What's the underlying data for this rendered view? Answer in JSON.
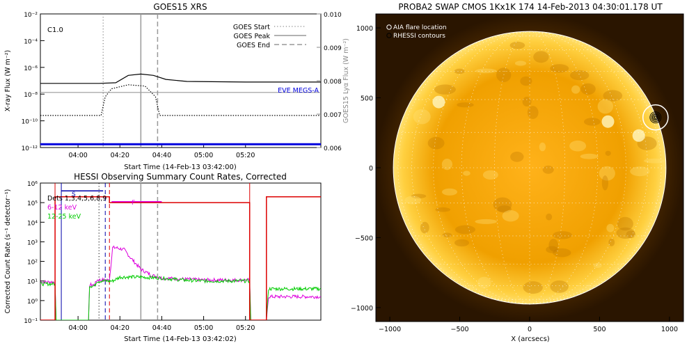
{
  "chart_data": [
    {
      "type": "line",
      "title": "GOES15 XRS",
      "xlabel": "Start Time (14-Feb-13 03:42:00)",
      "ylabel": "X-ray Flux (W m⁻²)",
      "ylabel_right": "GOES15 Lyα Flux (W m⁻²)",
      "x_ticks": [
        "04:00",
        "04:20",
        "04:40",
        "05:00",
        "05:20"
      ],
      "y_ticks": [
        "10⁻²",
        "10⁻⁴",
        "10⁻⁶",
        "10⁻⁸",
        "10⁻¹⁰",
        "10⁻¹²"
      ],
      "y_ticks_right": [
        "0.010",
        "0.009",
        "0.008",
        "0.007",
        "0.006"
      ],
      "ylim_log10": [
        -12,
        -2
      ],
      "ylim_right": [
        0.006,
        0.01
      ],
      "xlim_min": [
        222,
        356
      ],
      "class_label": "C1.0",
      "events": {
        "start": 252,
        "peak": 270,
        "end": 278
      },
      "legend": [
        "GOES Start",
        "GOES Peak",
        "GOES End"
      ],
      "annotation": "EVE MEGS-A",
      "series": [
        {
          "name": "",
          "color": "#000000",
          "x": [
            222,
            250,
            258,
            264,
            270,
            276,
            282,
            292,
            320,
            356
          ],
          "log10": [
            -7.2,
            -7.2,
            -7.15,
            -6.6,
            -6.5,
            -6.6,
            -6.9,
            -7.05,
            -7.1,
            -7.1
          ]
        },
        {
          "name": "",
          "color": "#000000",
          "dash": true,
          "x": [
            222,
            251,
            253,
            256,
            264,
            272,
            277,
            279,
            356
          ],
          "log10": [
            -9.6,
            -9.6,
            -8.2,
            -7.6,
            -7.3,
            -7.4,
            -8.2,
            -9.6,
            -9.6
          ]
        },
        {
          "name": "",
          "color": "#999999",
          "x": [
            222,
            356
          ],
          "right": [
            0.00765,
            0.00765
          ]
        },
        {
          "name": "EVE MEGS-A",
          "color": "#0000dd",
          "thick": true,
          "x": [
            222,
            356
          ],
          "right": [
            0.0061,
            0.0061
          ]
        }
      ]
    },
    {
      "type": "line",
      "title": "HESSI Observing Summary Count Rates, Corrected",
      "xlabel": "Start Time (14-Feb-13 03:42:02)",
      "ylabel": "Corrected Count Rate (s⁻¹ detector⁻¹)",
      "x_ticks": [
        "04:00",
        "04:20",
        "04:40",
        "05:00",
        "05:20"
      ],
      "y_ticks": [
        "10⁶",
        "10⁵",
        "10⁴",
        "10³",
        "10²",
        "10¹",
        "10⁰",
        "10⁻¹"
      ],
      "ylim_log10": [
        -1,
        6
      ],
      "xlim_min": [
        222,
        356
      ],
      "detectors_label": "Dets 1,3,4,5,6,8,9",
      "flags": [
        "S",
        "F"
      ],
      "series": [
        {
          "name": "6-12 keV",
          "color": "#dd00dd",
          "x": [
            222,
            229,
            229.5,
            245,
            245.5,
            248,
            249,
            255,
            256.5,
            258,
            262,
            265,
            270,
            275,
            280,
            290,
            300,
            310,
            322,
            322.5,
            330,
            331,
            356
          ],
          "log10": [
            0.95,
            0.95,
            -1,
            -1,
            0.8,
            0.8,
            1.05,
            1.05,
            2.7,
            2.7,
            2.6,
            2.2,
            1.6,
            1.3,
            1.15,
            1.1,
            1.05,
            1.05,
            1.05,
            -1,
            -1,
            0.2,
            0.2
          ]
        },
        {
          "name": "12-25 keV",
          "color": "#00cc00",
          "x": [
            222,
            229,
            229.5,
            245,
            245.5,
            248,
            249,
            256.5,
            260,
            270,
            280,
            290,
            300,
            322,
            322.5,
            330,
            331,
            356
          ],
          "log10": [
            0.85,
            0.85,
            -1,
            -1,
            0.75,
            0.75,
            1.0,
            1.0,
            1.2,
            1.2,
            1.15,
            1.05,
            1.0,
            1.0,
            -1,
            -1,
            0.6,
            0.6
          ]
        }
      ],
      "red_level": {
        "color": "#dd0000",
        "x": [
          222,
          229,
          229,
          232,
          232,
          255,
          255,
          322,
          322,
          330,
          330,
          356
        ],
        "log10": [
          -1,
          -1,
          5.3,
          5.3,
          5.3,
          5.3,
          5.0,
          5.0,
          -1,
          -1,
          5.3,
          5.3
        ]
      },
      "blue_s": {
        "color": "#0000aa",
        "x": [
          232,
          252
        ],
        "log10": [
          5.6,
          5.6
        ]
      },
      "magenta_f": {
        "color": "#dd00dd",
        "x": [
          256,
          280
        ],
        "log10": [
          5.05,
          5.05
        ]
      },
      "verticals": [
        {
          "x": 229,
          "color": "#dd0000",
          "style": "solid"
        },
        {
          "x": 232,
          "color": "#0000aa",
          "style": "solid"
        },
        {
          "x": 250,
          "color": "#000000",
          "style": "dotted"
        },
        {
          "x": 253,
          "color": "#0000aa",
          "style": "dashed"
        },
        {
          "x": 255,
          "color": "#dd0000",
          "style": "dashed"
        },
        {
          "x": 270,
          "color": "#999999",
          "style": "solid"
        },
        {
          "x": 278,
          "color": "#999999",
          "style": "dashed"
        },
        {
          "x": 322,
          "color": "#dd0000",
          "style": "solid"
        }
      ]
    },
    {
      "type": "heatmap",
      "title": "PROBA2 SWAP CMOS 1Kx1K 174 14-Feb-2013 04:30:01.178 UT",
      "xlabel": "X (arcsecs)",
      "ylabel": "",
      "x_ticks": [
        "−1000",
        "−500",
        "0",
        "500",
        "1000"
      ],
      "y_ticks": [
        "1000",
        "500",
        "0",
        "−500",
        "−1000"
      ],
      "xlim": [
        -1100,
        1100
      ],
      "ylim": [
        -1100,
        1100
      ],
      "solar_radius": 975,
      "legend": [
        "AIA flare location",
        "RHESSI contours"
      ],
      "flare_location": {
        "x": 900,
        "y": 360,
        "radius": 90
      }
    }
  ],
  "colors": {
    "sun_core": "#ffd24a",
    "sun_mid": "#e8a000",
    "sun_limb": "#7a4500",
    "corona": "#2a1500"
  }
}
